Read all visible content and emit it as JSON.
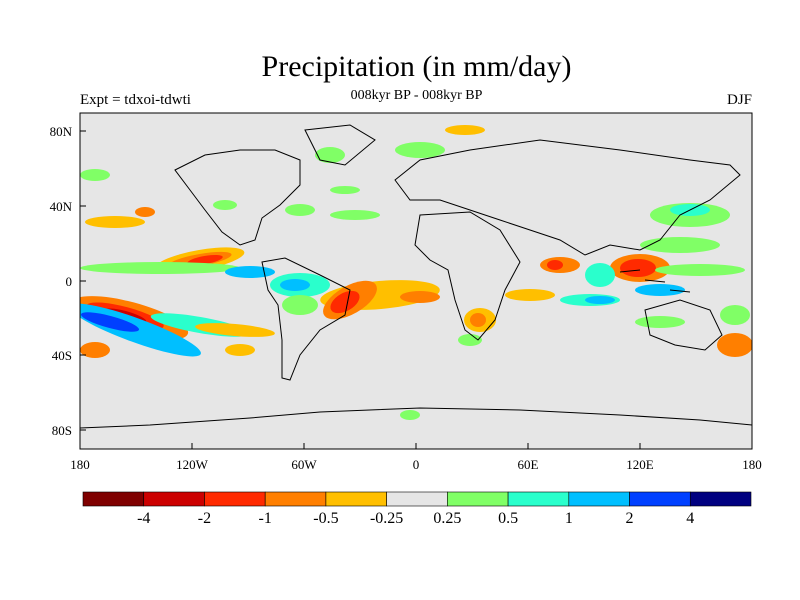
{
  "title": "Precipitation (in mm/day)",
  "subtitle": "008kyr BP - 008kyr BP",
  "left_label": "Expt = tdxoi-tdwti",
  "right_label": "DJF",
  "colors": {
    "background": "#e6e6e6",
    "coast": "#000000",
    "levels": [
      "#7f0000",
      "#cc0000",
      "#ff2a00",
      "#ff7f00",
      "#ffbf00",
      "#e6e6e6",
      "#80ff66",
      "#2affcc",
      "#00bfff",
      "#0040ff",
      "#000080"
    ]
  },
  "axes": {
    "lat_ticks": [
      "80N",
      "40N",
      "0",
      "40S",
      "80S"
    ],
    "lon_ticks": [
      "180",
      "120W",
      "60W",
      "0",
      "60E",
      "120E",
      "180"
    ]
  },
  "colorbar": {
    "labels": [
      "-4",
      "-2",
      "-1",
      "-0.5",
      "-0.25",
      "0.25",
      "0.5",
      "1",
      "2",
      "4"
    ]
  },
  "chart_data": {
    "type": "heatmap",
    "title": "Precipitation (in mm/day)",
    "subtitle": "008kyr BP - 008kyr BP",
    "projection": "cylindrical equidistant",
    "lon_range": [
      -180,
      180
    ],
    "lat_range": [
      -90,
      90
    ],
    "x_ticks": [
      "180",
      "120W",
      "60W",
      "0",
      "60E",
      "120E",
      "180"
    ],
    "y_ticks": [
      "80N",
      "40N",
      "0",
      "40S",
      "80S"
    ],
    "contour_levels": [
      -4,
      -2,
      -1,
      -0.5,
      -0.25,
      0.25,
      0.5,
      1,
      2,
      4
    ],
    "anomaly_regions": [
      {
        "lon": -160,
        "lat": -20,
        "value": -1.5
      },
      {
        "lon": -170,
        "lat": -20,
        "value": 2
      },
      {
        "lon": -120,
        "lat": 8,
        "value": -1.5
      },
      {
        "lon": -35,
        "lat": -10,
        "value": -2
      },
      {
        "lon": -55,
        "lat": 0,
        "value": 1
      },
      {
        "lon": 125,
        "lat": 5,
        "value": -2
      },
      {
        "lon": 100,
        "lat": 0,
        "value": 2
      },
      {
        "lon": 30,
        "lat": -20,
        "value": -0.5
      },
      {
        "lon": 80,
        "lat": 5,
        "value": -1
      },
      {
        "lon": -150,
        "lat": 35,
        "value": -0.5
      },
      {
        "lon": 170,
        "lat": -35,
        "value": -1
      },
      {
        "lon": -170,
        "lat": -35,
        "value": -1
      }
    ]
  }
}
